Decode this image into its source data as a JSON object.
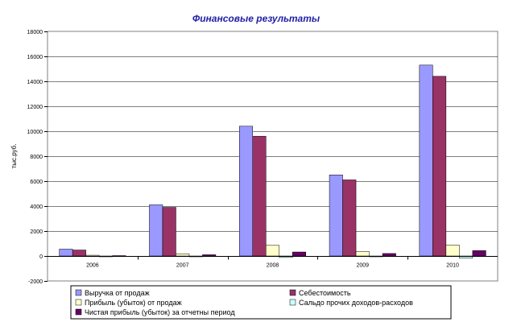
{
  "chart_data": {
    "type": "bar",
    "title": "Финансовые результаты",
    "ylabel": "тыс.руб.",
    "xlabel": "",
    "categories": [
      "2006",
      "2007",
      "2008",
      "2009",
      "2010"
    ],
    "ylim": [
      -2000,
      18000
    ],
    "yticks": [
      -2000,
      0,
      2000,
      4000,
      6000,
      8000,
      10000,
      12000,
      14000,
      16000,
      18000
    ],
    "grid": true,
    "legend_position": "bottom",
    "series": [
      {
        "name": "Выручка от продаж",
        "color": "#9999ff",
        "values": [
          550,
          4100,
          10400,
          6500,
          15300
        ]
      },
      {
        "name": "Себестоимость",
        "color": "#993366",
        "values": [
          480,
          3900,
          9600,
          6100,
          14400
        ]
      },
      {
        "name": "Прибыль (убыток) от продаж",
        "color": "#ffffcc",
        "values": [
          60,
          180,
          850,
          350,
          880
        ]
      },
      {
        "name": "Сальдо прочих доходов-расходов",
        "color": "#ccffff",
        "values": [
          -20,
          -60,
          -120,
          -50,
          -170
        ]
      },
      {
        "name": "Чистая прибыль (убыток) за отчетны период",
        "color": "#660066",
        "values": [
          30,
          100,
          320,
          200,
          430
        ]
      }
    ]
  }
}
